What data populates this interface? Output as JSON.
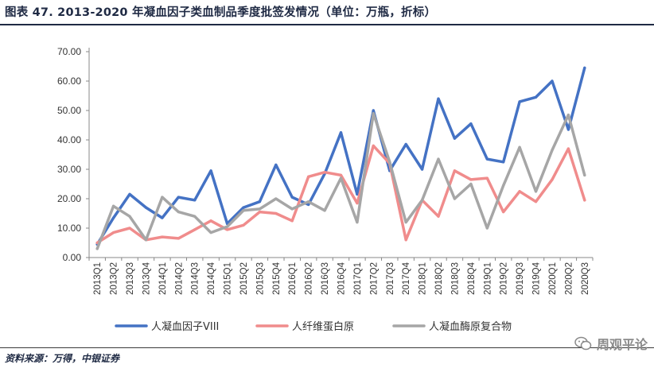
{
  "header": {
    "title": "图表 47. 2013-2020 年凝血因子类血制品季度批签发情况（单位：万瓶，折标）"
  },
  "footer": {
    "source": "资料来源：万得，中银证券",
    "watermark": "周观平论"
  },
  "colors": {
    "series_1": "#4472c4",
    "series_2": "#f08c8c",
    "series_3": "#a6a6a6",
    "title_rule": "#1f2a44"
  },
  "chart_data": {
    "type": "line",
    "title": "",
    "xlabel": "",
    "ylabel": "",
    "ylim": [
      0,
      70
    ],
    "yticks": [
      "0.00",
      "10.00",
      "20.00",
      "30.00",
      "40.00",
      "50.00",
      "60.00",
      "70.00"
    ],
    "grid": false,
    "legend": "bottom",
    "categories": [
      "2013Q1",
      "2013Q2",
      "2013Q3",
      "2013Q4",
      "2014Q1",
      "2014Q2",
      "2014Q3",
      "2014Q4",
      "2015Q1",
      "2015Q2",
      "2015Q3",
      "2015Q4",
      "2016Q1",
      "2016Q2",
      "2016Q3",
      "2016Q4",
      "2017Q1",
      "2017Q2",
      "2017Q3",
      "2017Q4",
      "2018Q1",
      "2018Q2",
      "2018Q3",
      "2018Q4",
      "2019Q1",
      "2019Q2",
      "2019Q3",
      "2019Q4",
      "2020Q1",
      "2020Q2",
      "2020Q3"
    ],
    "series": [
      {
        "name": "人凝血因子VIII",
        "color": "#4472c4",
        "values": [
          4.5,
          13.5,
          21.5,
          17.0,
          13.5,
          20.5,
          19.5,
          29.5,
          11.5,
          17.0,
          19.0,
          31.5,
          20.5,
          18.0,
          28.5,
          42.5,
          21.5,
          50.0,
          29.5,
          38.5,
          30.0,
          54.0,
          40.5,
          45.5,
          33.5,
          32.5,
          53.0,
          54.5,
          60.0,
          43.5,
          64.5
        ]
      },
      {
        "name": "人纤维蛋白原",
        "color": "#f08c8c",
        "values": [
          5.0,
          8.5,
          10.0,
          6.0,
          7.0,
          6.5,
          9.5,
          12.5,
          9.5,
          11.0,
          15.5,
          15.0,
          12.5,
          27.5,
          29.0,
          28.0,
          18.5,
          38.0,
          32.0,
          6.0,
          19.5,
          14.0,
          29.5,
          26.5,
          27.0,
          15.5,
          22.5,
          19.0,
          26.5,
          37.0,
          19.5
        ]
      },
      {
        "name": "人凝血酶原复合物",
        "color": "#a6a6a6",
        "values": [
          3.0,
          17.5,
          14.0,
          6.0,
          20.5,
          15.5,
          14.0,
          8.5,
          10.5,
          16.0,
          16.5,
          20.0,
          16.5,
          19.0,
          16.0,
          27.0,
          12.0,
          49.0,
          32.5,
          12.0,
          19.5,
          33.5,
          20.0,
          25.0,
          10.0,
          24.5,
          37.5,
          22.5,
          36.5,
          48.5,
          28.0
        ]
      }
    ]
  }
}
